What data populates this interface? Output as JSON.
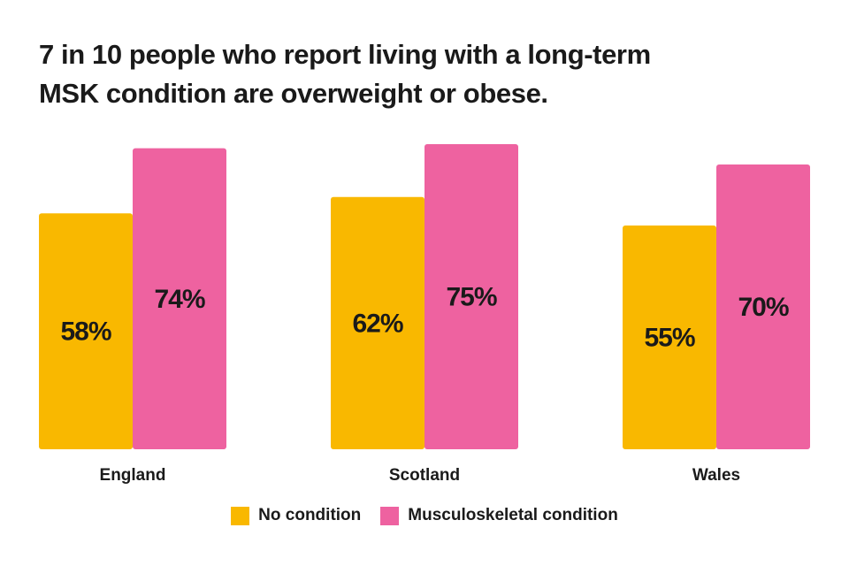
{
  "title_lines": [
    "7 in 10 people who report living with a long-term",
    "MSK condition are overweight or obese."
  ],
  "colors": {
    "no_condition": "#F9B800",
    "msk_condition": "#EE62A0",
    "text": "#1a1a1a"
  },
  "chart_data": {
    "type": "bar",
    "title": "7 in 10 people who report living with a long-term MSK condition are overweight or obese.",
    "categories": [
      "England",
      "Scotland",
      "Wales"
    ],
    "series": [
      {
        "name": "No condition",
        "values": [
          58,
          62,
          55
        ],
        "labels": [
          "58%",
          "62%",
          "55%"
        ]
      },
      {
        "name": "Musculoskeletal condition",
        "values": [
          74,
          75,
          70
        ],
        "labels": [
          "74%",
          "75%",
          "70%"
        ]
      }
    ],
    "xlabel": "",
    "ylabel": "",
    "ylim": [
      0,
      100
    ],
    "grid": false,
    "legend": "bottom-center"
  },
  "legend": [
    {
      "label": "No condition",
      "color": "#F9B800"
    },
    {
      "label": "Musculoskeletal condition",
      "color": "#EE62A0"
    }
  ]
}
